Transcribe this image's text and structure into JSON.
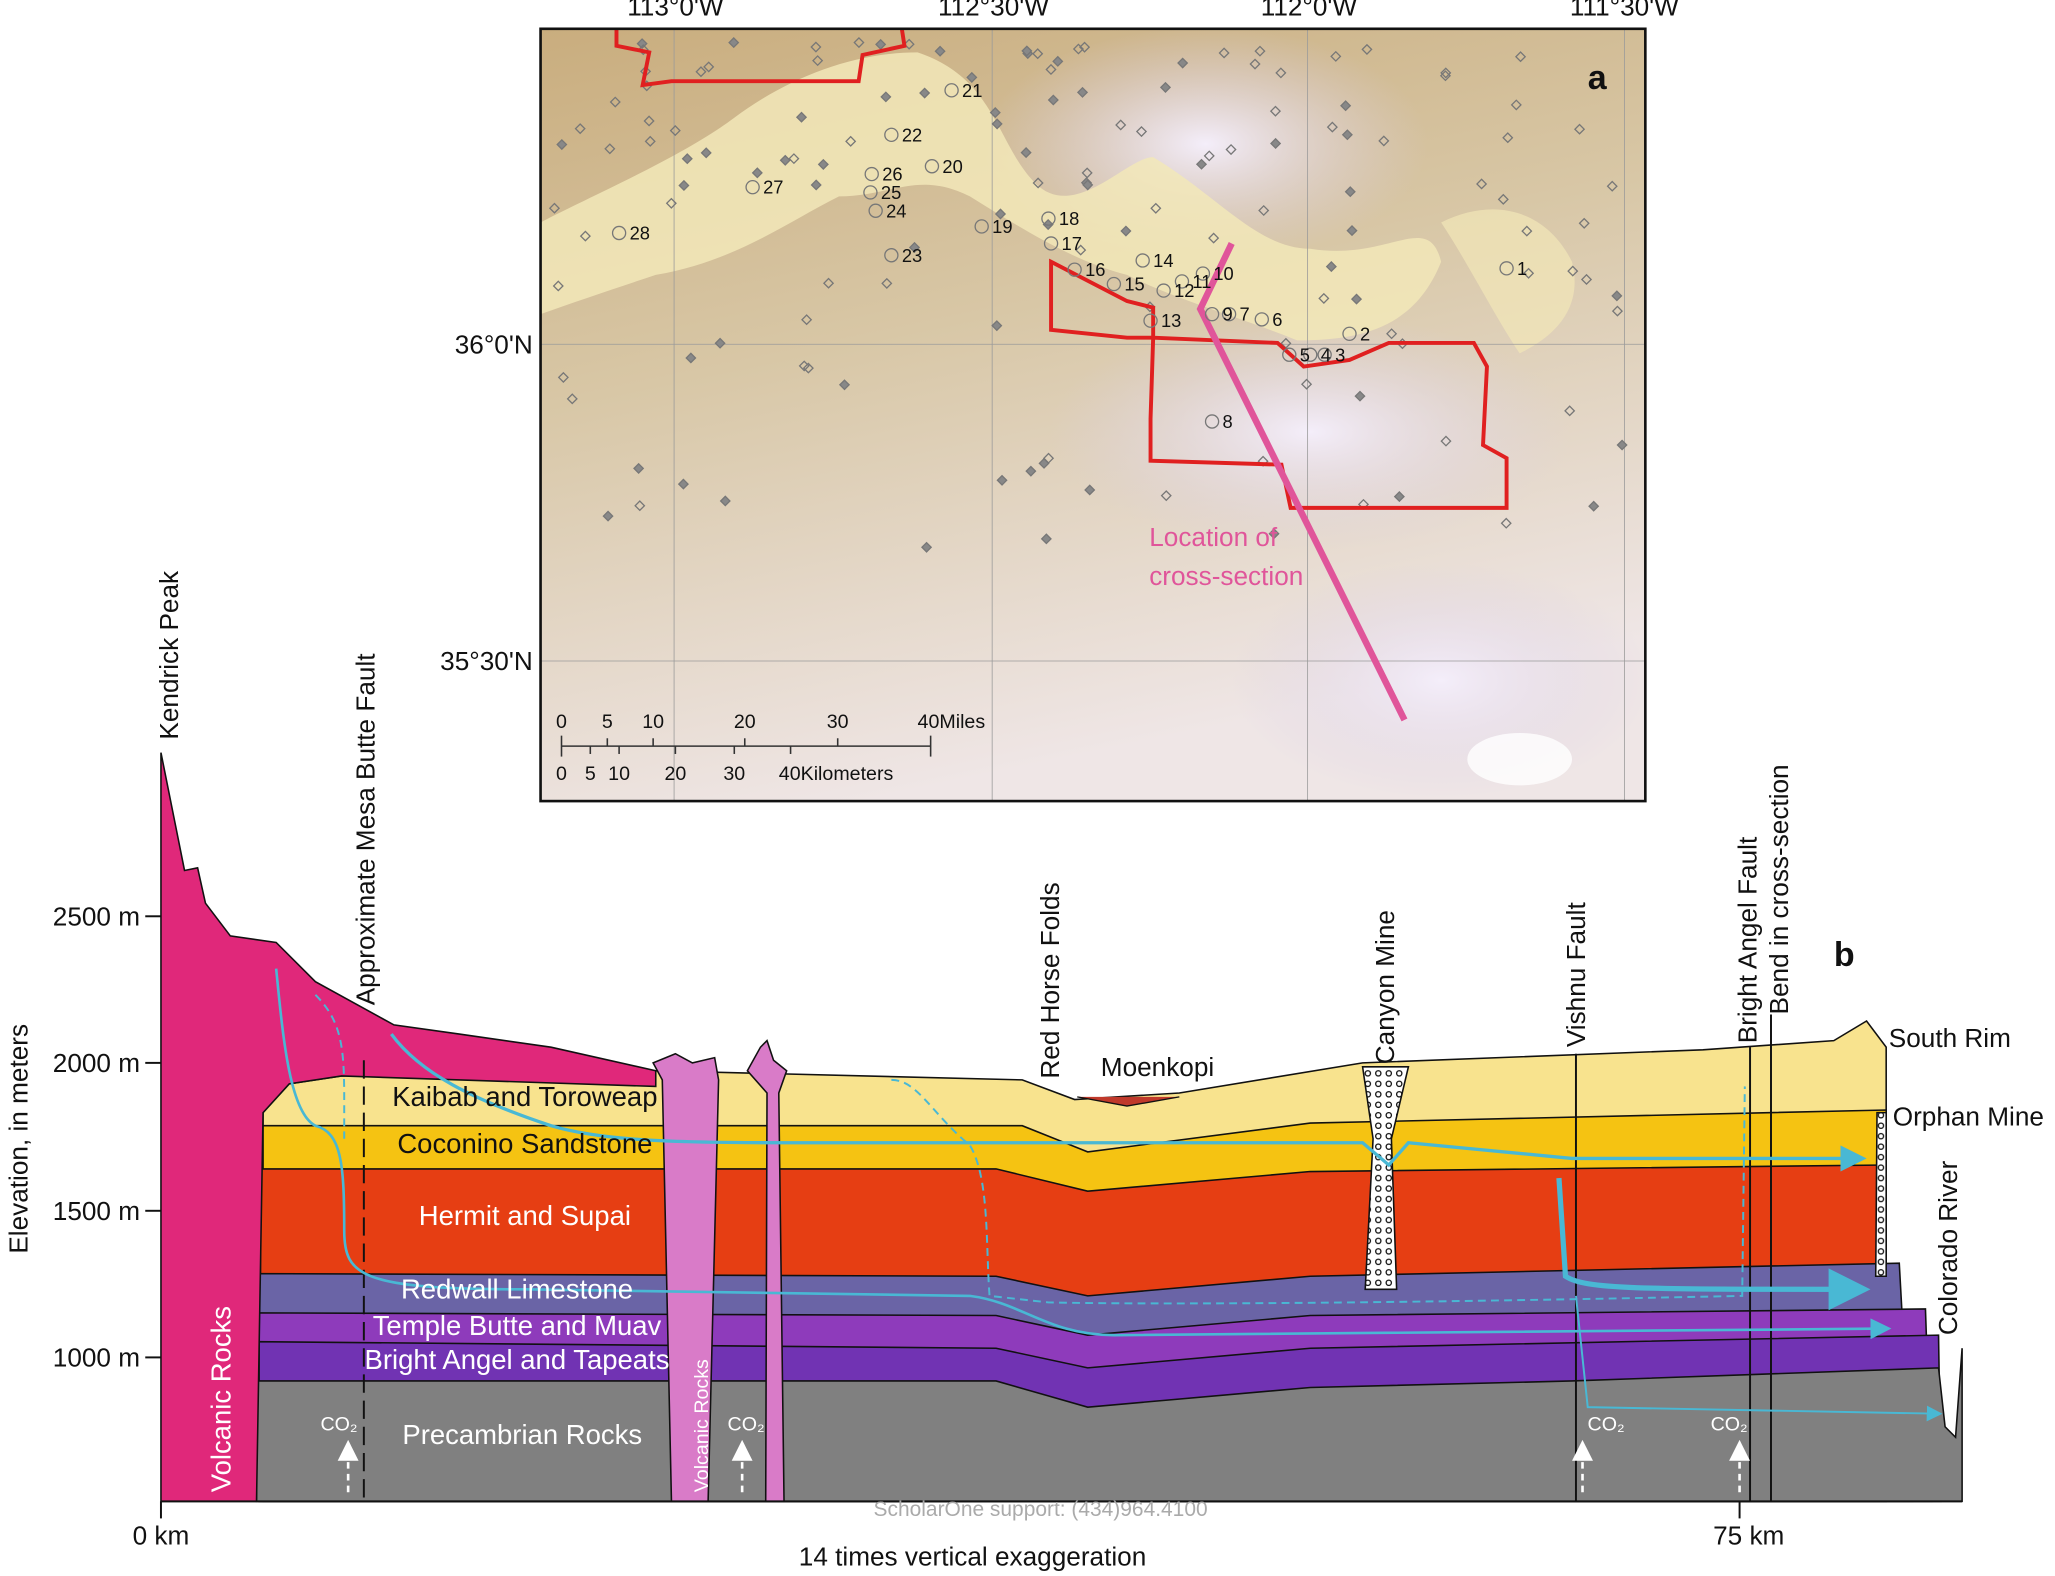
{
  "map": {
    "panel_label": "a",
    "longitude_labels": [
      "113°0'W",
      "112°30'W",
      "112°0'W",
      "111°30'W"
    ],
    "latitude_labels": [
      "36°0'N",
      "35°30'N"
    ],
    "sites": [
      "1",
      "2",
      "3",
      "4",
      "5",
      "6",
      "7",
      "8",
      "9",
      "10",
      "11",
      "12",
      "13",
      "14",
      "15",
      "16",
      "17",
      "18",
      "19",
      "20",
      "21",
      "22",
      "23",
      "24",
      "25",
      "26",
      "27",
      "28"
    ],
    "scale_miles": [
      "0",
      "5",
      "10",
      "20",
      "30",
      "40Miles"
    ],
    "scale_km": [
      "0",
      "5",
      "10",
      "20",
      "30",
      "40Kilometers"
    ],
    "annotation": [
      "Location of",
      "cross-section"
    ]
  },
  "cross_section": {
    "panel_label": "b",
    "y_axis_label": "Elevation, in meters",
    "y_tick_labels": [
      "2500 m",
      "2000 m",
      "1500 m",
      "1000 m"
    ],
    "x_tick_labels": [
      "0 km",
      "75 km"
    ],
    "x_axis_label": "14 times vertical exaggeration",
    "features": [
      "Kendrick Peak",
      "Approximate Mesa Butte Fault",
      "Red Horse Folds",
      "Moenkopi",
      "Canyon Mine",
      "Vishnu Fault",
      "Bright Angel Fault",
      "Bend in cross-section",
      "South Rim",
      "Orphan Mine",
      "Colorado River"
    ],
    "units": [
      "Kaibab and Toroweap",
      "Coconino Sandstone",
      "Hermit and Supai",
      "Redwall Limestone",
      "Temple Butte and Muav",
      "Bright Angel and Tapeats",
      "Precambrian Rocks",
      "Volcanic Rocks",
      "Volcanic Rocks"
    ],
    "co2_labels": [
      "CO₂",
      "CO₂",
      "CO₂",
      "CO₂"
    ],
    "watermark": "ScholarOne support: (434)964.4100"
  }
}
